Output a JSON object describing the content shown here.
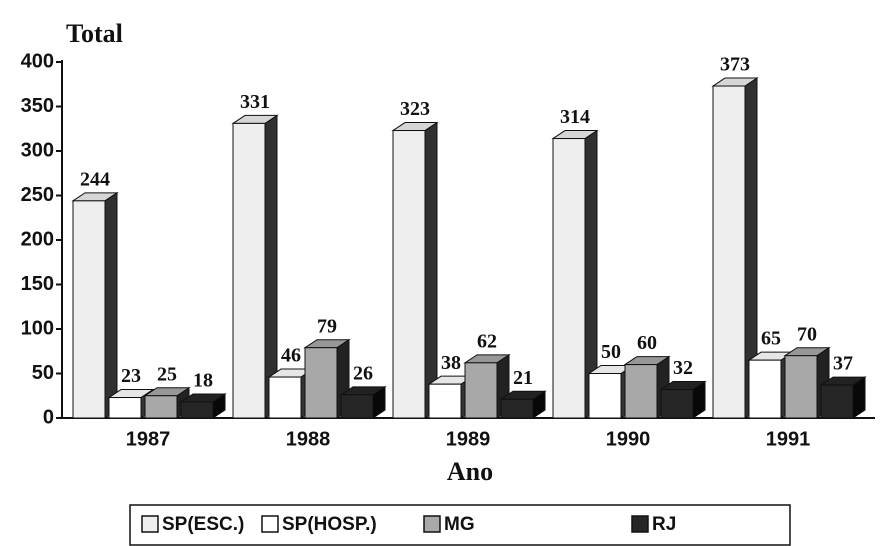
{
  "chart_data": {
    "type": "bar",
    "y_label": "Total",
    "x_label": "Ano",
    "categories": [
      "1987",
      "1988",
      "1989",
      "1990",
      "1991"
    ],
    "series": [
      {
        "name": "SP(ESC.)",
        "color": "#eeeeee",
        "values": [
          244,
          331,
          323,
          314,
          373
        ]
      },
      {
        "name": "SP(HOSP.)",
        "color": "#ffffff",
        "values": [
          23,
          46,
          38,
          50,
          65
        ]
      },
      {
        "name": "MG",
        "color": "#a8a8a8",
        "values": [
          25,
          79,
          62,
          60,
          70
        ]
      },
      {
        "name": "RJ",
        "color": "#262626",
        "values": [
          18,
          26,
          21,
          32,
          37
        ]
      }
    ],
    "ylim": [
      0,
      400
    ],
    "yticks": [
      0,
      50,
      100,
      150,
      200,
      250,
      300,
      350,
      400
    ],
    "legend": "bottom"
  }
}
